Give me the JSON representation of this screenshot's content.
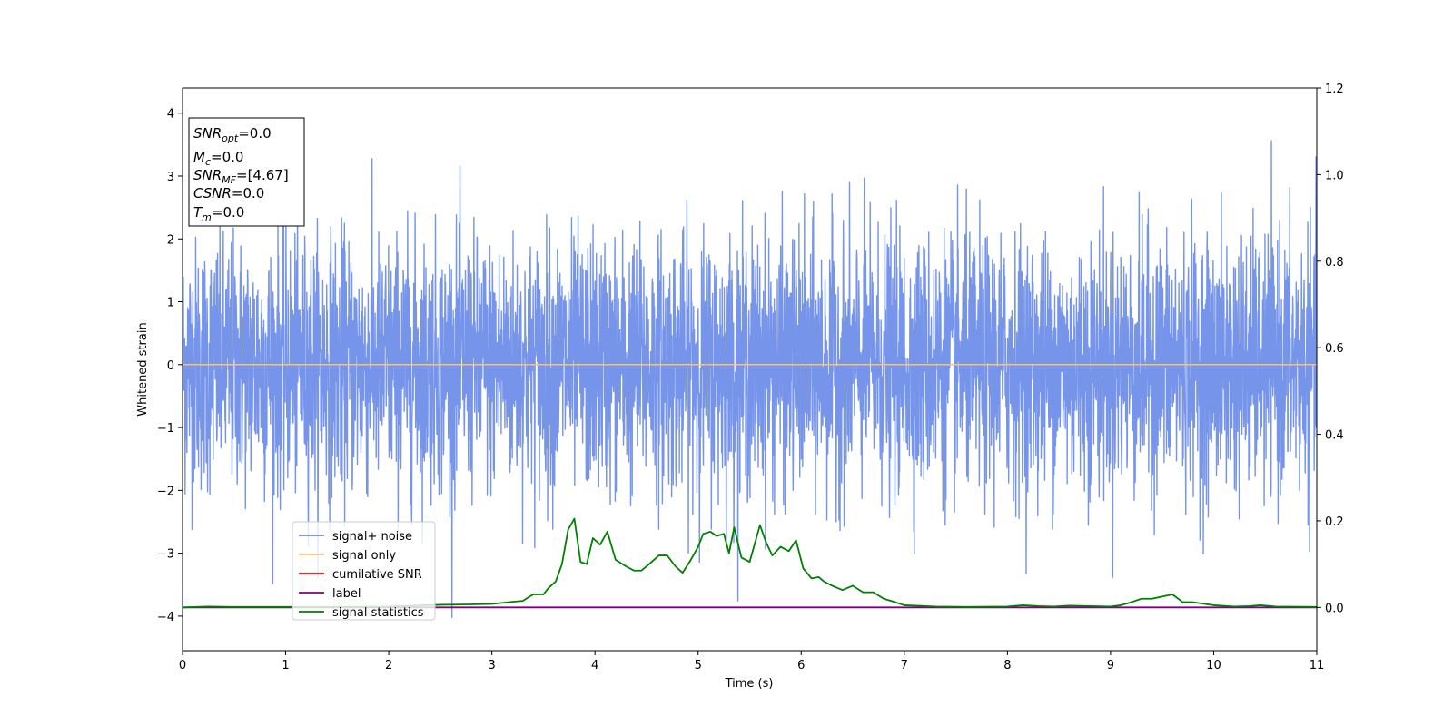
{
  "chart_data": {
    "type": "line",
    "xlabel": "Time (s)",
    "ylabel_left": "Whitened strain",
    "ylabel_right": "",
    "xlim": [
      0,
      11
    ],
    "ylim_left": [
      -4.55,
      4.4
    ],
    "ylim_right": [
      -0.1,
      1.2
    ],
    "x_ticks": [
      "0",
      "1",
      "2",
      "3",
      "4",
      "5",
      "6",
      "7",
      "8",
      "9",
      "10",
      "11"
    ],
    "y_left_ticks": [
      "4",
      "3",
      "2",
      "1",
      "0",
      "−1",
      "−2",
      "−3",
      "−4"
    ],
    "y_right_ticks": [
      "1.2",
      "1.0",
      "0.8",
      "0.6",
      "0.4",
      "0.2",
      "0.0"
    ],
    "legend": {
      "placement": "lower-left",
      "entries": [
        {
          "label": "signal+ noise",
          "color": "#6f8ee8"
        },
        {
          "label": "signal only",
          "color": "#ffc266"
        },
        {
          "label": "cumilative SNR",
          "color": "#ff0000"
        },
        {
          "label": "label",
          "color": "#800080"
        },
        {
          "label": "signal statistics",
          "color": "#008000"
        }
      ]
    },
    "info_box": {
      "lines": [
        {
          "sym": "SNR",
          "sub": "opt",
          "value": "=0.0"
        },
        {
          "sym": "M",
          "sub": "c",
          "value": "=0.0"
        },
        {
          "sym": "SNR",
          "sub": "MF",
          "value": "=[4.67]"
        },
        {
          "sym": "CSNR",
          "sub": "",
          "value": "=0.0"
        },
        {
          "sym": "T",
          "sub": "m",
          "value": "=0.0"
        }
      ]
    },
    "series": [
      {
        "name": "signal+ noise",
        "axis": "left",
        "color": "#6f8ee8",
        "noise_std": 1.0,
        "x_range": [
          0,
          11
        ],
        "samples": 4400
      },
      {
        "name": "signal only",
        "axis": "left",
        "color": "#ffc266",
        "x": [
          0,
          11
        ],
        "y": [
          0,
          0
        ]
      },
      {
        "name": "cumilative SNR",
        "axis": "right",
        "color": "#ff0000",
        "x": [
          0,
          11
        ],
        "y": [
          0,
          0
        ]
      },
      {
        "name": "label",
        "axis": "right",
        "color": "#800080",
        "x": [
          0,
          11
        ],
        "y": [
          0,
          0
        ]
      },
      {
        "name": "signal statistics",
        "axis": "right",
        "color": "#008000",
        "x": [
          0,
          0.25,
          0.5,
          1.0,
          1.5,
          2.0,
          2.5,
          2.8,
          3.0,
          3.2,
          3.3,
          3.4,
          3.5,
          3.55,
          3.62,
          3.68,
          3.74,
          3.8,
          3.86,
          3.92,
          3.98,
          4.05,
          4.12,
          4.2,
          4.3,
          4.38,
          4.45,
          4.55,
          4.62,
          4.7,
          4.78,
          4.85,
          4.93,
          5.0,
          5.05,
          5.12,
          5.18,
          5.25,
          5.3,
          5.35,
          5.42,
          5.5,
          5.6,
          5.66,
          5.72,
          5.8,
          5.88,
          5.95,
          6.02,
          6.1,
          6.17,
          6.22,
          6.3,
          6.4,
          6.5,
          6.6,
          6.7,
          6.8,
          6.9,
          7.0,
          7.3,
          7.6,
          8.0,
          8.15,
          8.3,
          8.45,
          8.6,
          8.8,
          9.0,
          9.1,
          9.2,
          9.3,
          9.4,
          9.5,
          9.6,
          9.7,
          9.8,
          10.0,
          10.2,
          10.35,
          10.45,
          10.6,
          11.0
        ],
        "y": [
          0.0,
          0.002,
          0.001,
          0.001,
          0.001,
          0.002,
          0.006,
          0.007,
          0.008,
          0.013,
          0.015,
          0.03,
          0.03,
          0.045,
          0.06,
          0.1,
          0.18,
          0.205,
          0.105,
          0.1,
          0.16,
          0.145,
          0.175,
          0.11,
          0.095,
          0.085,
          0.085,
          0.105,
          0.12,
          0.12,
          0.095,
          0.08,
          0.11,
          0.14,
          0.17,
          0.175,
          0.165,
          0.17,
          0.125,
          0.185,
          0.115,
          0.105,
          0.19,
          0.15,
          0.12,
          0.14,
          0.13,
          0.155,
          0.09,
          0.067,
          0.07,
          0.06,
          0.05,
          0.04,
          0.05,
          0.035,
          0.035,
          0.02,
          0.013,
          0.005,
          0.002,
          0.001,
          0.002,
          0.005,
          0.003,
          0.002,
          0.004,
          0.003,
          0.002,
          0.005,
          0.012,
          0.02,
          0.02,
          0.025,
          0.03,
          0.012,
          0.012,
          0.005,
          0.002,
          0.003,
          0.005,
          0.002,
          0.001
        ]
      }
    ]
  }
}
